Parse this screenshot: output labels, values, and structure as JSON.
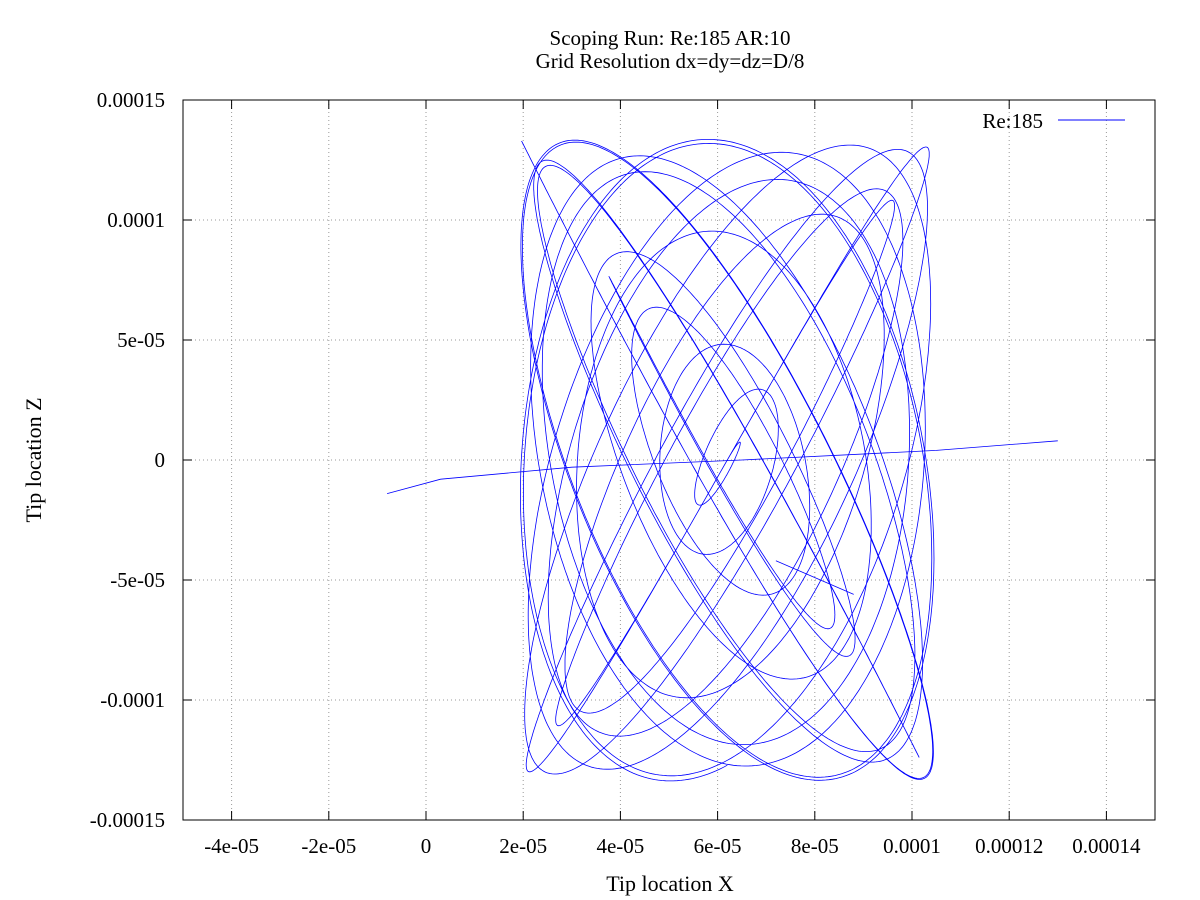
{
  "chart_data": {
    "type": "line",
    "title": "Scoping Run: Re:185  AR:10",
    "subtitle": "Grid Resolution dx=dy=dz=D/8",
    "xlabel": "Tip location X",
    "ylabel": "Tip location Z",
    "xlim": [
      -5e-05,
      0.00015
    ],
    "ylim": [
      -0.00015,
      0.00015
    ],
    "x_ticks": [
      {
        "value": -4e-05,
        "label": "-4e-05"
      },
      {
        "value": -2e-05,
        "label": "-2e-05"
      },
      {
        "value": 0,
        "label": "0"
      },
      {
        "value": 2e-05,
        "label": "2e-05"
      },
      {
        "value": 4e-05,
        "label": "4e-05"
      },
      {
        "value": 6e-05,
        "label": "6e-05"
      },
      {
        "value": 8e-05,
        "label": "8e-05"
      },
      {
        "value": 0.0001,
        "label": "0.0001"
      },
      {
        "value": 0.00012,
        "label": "0.00012"
      },
      {
        "value": 0.00014,
        "label": "0.00014"
      }
    ],
    "y_ticks": [
      {
        "value": 0.00015,
        "label": "0.00015"
      },
      {
        "value": 0.0001,
        "label": "0.0001"
      },
      {
        "value": 5e-05,
        "label": "5e-05"
      },
      {
        "value": 0,
        "label": "0"
      },
      {
        "value": -5e-05,
        "label": "-5e-05"
      },
      {
        "value": -0.0001,
        "label": "-0.0001"
      },
      {
        "value": -0.00015,
        "label": "-0.00015"
      }
    ],
    "grid": true,
    "legend_position": "top-right",
    "series": [
      {
        "name": "Re:185",
        "color": "#0000ff",
        "trajectory": {
          "x_center": 6.2e-05,
          "z_center": 0.0,
          "x_amplitude": 4.3e-05,
          "z_amplitude": 0.000135,
          "z_frequency_ratio": 1.05,
          "phase_drift_cycles": 1.75,
          "cycles": 21,
          "growth_cycles": 4.5
        },
        "segments": [
          {
            "x": [
              -8e-06,
              3e-06,
              3e-05,
              6.5e-05,
              0.000105,
              0.00013
            ],
            "y": [
              -1.4e-05,
              -8e-06,
              -3e-06,
              0.0,
              4e-06,
              8e-06
            ]
          },
          {
            "x": [
              8.8e-05,
              7.2e-05
            ],
            "y": [
              -5.6e-05,
              -4.2e-05
            ]
          }
        ]
      }
    ]
  }
}
